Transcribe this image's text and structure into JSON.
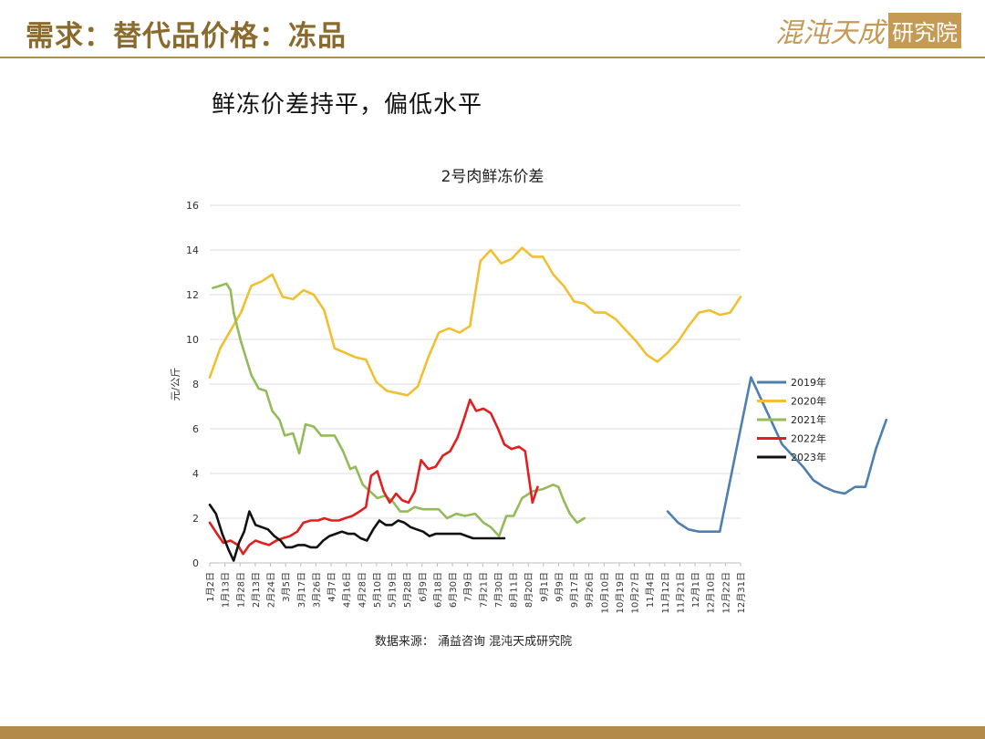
{
  "header": {
    "title": "需求：替代品价格：冻品"
  },
  "logo": {
    "text_a": "混沌天成",
    "text_b": "研究院"
  },
  "subtitle": "鲜冻价差持平，偏低水平",
  "source": "数据来源：  涌益咨询 混沌天成研究院",
  "colors": {
    "accent": "#b38a4a"
  },
  "chart_data": {
    "type": "line",
    "title": "2号肉鲜冻价差",
    "xlabel": "",
    "ylabel": "元/公斤",
    "ylim": [
      0,
      16
    ],
    "yticks": [
      0,
      2,
      4,
      6,
      8,
      10,
      12,
      14,
      16
    ],
    "grid": true,
    "legend_position": "right",
    "x": [
      "1月2日",
      "1月13日",
      "1月28日",
      "2月13日",
      "2月24日",
      "3月5日",
      "3月17日",
      "3月26日",
      "4月7日",
      "4月16日",
      "4月28日",
      "5月10日",
      "5月19日",
      "5月28日",
      "6月9日",
      "6月18日",
      "6月30日",
      "7月9日",
      "7月21日",
      "7月30日",
      "8月11日",
      "8月20日",
      "9月1日",
      "9月9日",
      "9月17日",
      "9月26日",
      "10月10日",
      "10月19日",
      "10月27日",
      "11月4日",
      "11月12日",
      "11月21日",
      "12月1日",
      "12月10日",
      "12月22日",
      "12月31日"
    ],
    "series": [
      {
        "name": "2019年",
        "color": "#4e7fb0",
        "points": [
          [
            44,
            2.3
          ],
          [
            45,
            1.8
          ],
          [
            46,
            1.5
          ],
          [
            47,
            1.4
          ],
          [
            48,
            1.4
          ],
          [
            49,
            1.4
          ],
          [
            50,
            3.7
          ],
          [
            51,
            6.0
          ],
          [
            52,
            8.3
          ],
          [
            53,
            7.3
          ],
          [
            54,
            6.3
          ],
          [
            55,
            5.3
          ],
          [
            56,
            4.8
          ],
          [
            57,
            4.3
          ],
          [
            58,
            3.7
          ],
          [
            59,
            3.4
          ],
          [
            60,
            3.2
          ],
          [
            61,
            3.1
          ],
          [
            62,
            3.4
          ],
          [
            63,
            3.4
          ],
          [
            64,
            5.1
          ],
          [
            65,
            6.4
          ]
        ]
      },
      {
        "name": "2020年",
        "color": "#f0c030",
        "points": [
          [
            0,
            8.3
          ],
          [
            1,
            9.6
          ],
          [
            2,
            10.4
          ],
          [
            3,
            11.2
          ],
          [
            4,
            12.4
          ],
          [
            5,
            12.6
          ],
          [
            6,
            12.9
          ],
          [
            7,
            11.9
          ],
          [
            8,
            11.8
          ],
          [
            9,
            12.2
          ],
          [
            10,
            12.0
          ],
          [
            11,
            11.3
          ],
          [
            12,
            9.6
          ],
          [
            13,
            9.4
          ],
          [
            14,
            9.2
          ],
          [
            15,
            9.1
          ],
          [
            16,
            8.1
          ],
          [
            17,
            7.7
          ],
          [
            18,
            7.6
          ],
          [
            19,
            7.5
          ],
          [
            20,
            7.9
          ],
          [
            21,
            9.2
          ],
          [
            22,
            10.3
          ],
          [
            23,
            10.5
          ],
          [
            24,
            10.3
          ],
          [
            25,
            10.6
          ],
          [
            26,
            13.5
          ],
          [
            27,
            14.0
          ],
          [
            28,
            13.4
          ],
          [
            29,
            13.6
          ],
          [
            30,
            14.1
          ],
          [
            31,
            13.7
          ],
          [
            32,
            13.7
          ],
          [
            33,
            12.9
          ],
          [
            34,
            12.4
          ],
          [
            35,
            11.7
          ],
          [
            36,
            11.6
          ],
          [
            37,
            11.2
          ],
          [
            38,
            11.2
          ],
          [
            39,
            10.9
          ],
          [
            40,
            10.4
          ],
          [
            41,
            9.9
          ],
          [
            42,
            9.3
          ],
          [
            43,
            9.0
          ],
          [
            44,
            9.4
          ],
          [
            45,
            9.9
          ],
          [
            46,
            10.6
          ],
          [
            47,
            11.2
          ],
          [
            48,
            11.3
          ],
          [
            49,
            11.1
          ],
          [
            50,
            11.2
          ],
          [
            51,
            11.9
          ]
        ]
      },
      {
        "name": "2021年",
        "color": "#93bb5a",
        "points": [
          [
            0.3,
            12.3
          ],
          [
            1,
            12.4
          ],
          [
            1.6,
            12.5
          ],
          [
            2,
            12.2
          ],
          [
            2.3,
            11.2
          ],
          [
            3,
            9.9
          ],
          [
            4,
            8.4
          ],
          [
            4.7,
            7.8
          ],
          [
            5.4,
            7.7
          ],
          [
            6,
            6.8
          ],
          [
            6.7,
            6.4
          ],
          [
            7.2,
            5.7
          ],
          [
            8,
            5.8
          ],
          [
            8.6,
            4.9
          ],
          [
            9.2,
            6.2
          ],
          [
            10,
            6.1
          ],
          [
            10.7,
            5.7
          ],
          [
            11.3,
            5.7
          ],
          [
            12,
            5.7
          ],
          [
            12.8,
            5.0
          ],
          [
            13.5,
            4.2
          ],
          [
            14,
            4.3
          ],
          [
            14.7,
            3.5
          ],
          [
            15.4,
            3.2
          ],
          [
            16.1,
            2.9
          ],
          [
            16.8,
            3.0
          ],
          [
            17.5,
            2.8
          ],
          [
            18.3,
            2.3
          ],
          [
            19,
            2.3
          ],
          [
            19.7,
            2.5
          ],
          [
            20.5,
            2.4
          ],
          [
            21.3,
            2.4
          ],
          [
            22,
            2.4
          ],
          [
            22.8,
            2.0
          ],
          [
            23.7,
            2.2
          ],
          [
            24.5,
            2.1
          ],
          [
            25.5,
            2.2
          ],
          [
            26.3,
            1.8
          ],
          [
            27,
            1.6
          ],
          [
            27.8,
            1.2
          ],
          [
            28.5,
            2.1
          ],
          [
            29.2,
            2.1
          ],
          [
            30,
            2.9
          ],
          [
            31,
            3.2
          ],
          [
            32,
            3.3
          ],
          [
            33,
            3.5
          ],
          [
            33.5,
            3.4
          ],
          [
            34,
            2.8
          ],
          [
            34.6,
            2.2
          ],
          [
            35.3,
            1.8
          ],
          [
            36,
            2.0
          ]
        ]
      },
      {
        "name": "2022年",
        "color": "#e02020",
        "points": [
          [
            0,
            1.8
          ],
          [
            0.7,
            1.3
          ],
          [
            1.3,
            0.9
          ],
          [
            2,
            1.0
          ],
          [
            2.7,
            0.8
          ],
          [
            3.2,
            0.4
          ],
          [
            3.8,
            0.8
          ],
          [
            4.4,
            1.0
          ],
          [
            5,
            0.9
          ],
          [
            5.7,
            0.8
          ],
          [
            6.4,
            1.0
          ],
          [
            7,
            1.1
          ],
          [
            7.7,
            1.2
          ],
          [
            8.4,
            1.4
          ],
          [
            9,
            1.8
          ],
          [
            9.7,
            1.9
          ],
          [
            10.4,
            1.9
          ],
          [
            11,
            2.0
          ],
          [
            11.7,
            1.9
          ],
          [
            12.4,
            1.9
          ],
          [
            13,
            2.0
          ],
          [
            13.7,
            2.1
          ],
          [
            14.4,
            2.3
          ],
          [
            15,
            2.5
          ],
          [
            15.5,
            3.9
          ],
          [
            16.1,
            4.1
          ],
          [
            16.7,
            3.2
          ],
          [
            17.3,
            2.7
          ],
          [
            17.9,
            3.1
          ],
          [
            18.5,
            2.8
          ],
          [
            19.1,
            2.7
          ],
          [
            19.7,
            3.2
          ],
          [
            20.3,
            4.6
          ],
          [
            21,
            4.2
          ],
          [
            21.7,
            4.3
          ],
          [
            22.4,
            4.8
          ],
          [
            23.1,
            5.0
          ],
          [
            23.8,
            5.6
          ],
          [
            24.4,
            6.4
          ],
          [
            25,
            7.3
          ],
          [
            25.6,
            6.8
          ],
          [
            26.3,
            6.9
          ],
          [
            27,
            6.7
          ],
          [
            27.7,
            6.0
          ],
          [
            28.3,
            5.3
          ],
          [
            29,
            5.1
          ],
          [
            29.7,
            5.2
          ],
          [
            30.3,
            5.0
          ],
          [
            31,
            2.7
          ],
          [
            31.5,
            3.4
          ]
        ]
      },
      {
        "name": "2023年",
        "color": "#111111",
        "points": [
          [
            0,
            2.6
          ],
          [
            0.6,
            2.2
          ],
          [
            1.2,
            1.3
          ],
          [
            1.8,
            0.6
          ],
          [
            2.3,
            0.1
          ],
          [
            2.8,
            0.9
          ],
          [
            3.3,
            1.4
          ],
          [
            3.8,
            2.3
          ],
          [
            4.4,
            1.7
          ],
          [
            5,
            1.6
          ],
          [
            5.6,
            1.5
          ],
          [
            6.2,
            1.2
          ],
          [
            6.8,
            1.0
          ],
          [
            7.3,
            0.7
          ],
          [
            7.9,
            0.7
          ],
          [
            8.5,
            0.8
          ],
          [
            9.1,
            0.8
          ],
          [
            9.7,
            0.7
          ],
          [
            10.3,
            0.7
          ],
          [
            10.9,
            1.0
          ],
          [
            11.5,
            1.2
          ],
          [
            12.1,
            1.3
          ],
          [
            12.7,
            1.4
          ],
          [
            13.3,
            1.3
          ],
          [
            13.9,
            1.3
          ],
          [
            14.5,
            1.1
          ],
          [
            15.1,
            1.0
          ],
          [
            15.7,
            1.5
          ],
          [
            16.3,
            1.9
          ],
          [
            16.9,
            1.7
          ],
          [
            17.5,
            1.7
          ],
          [
            18.1,
            1.9
          ],
          [
            18.7,
            1.8
          ],
          [
            19.3,
            1.6
          ],
          [
            19.9,
            1.5
          ],
          [
            20.5,
            1.4
          ],
          [
            21.1,
            1.2
          ],
          [
            21.7,
            1.3
          ],
          [
            22.3,
            1.3
          ],
          [
            22.9,
            1.3
          ],
          [
            23.5,
            1.3
          ],
          [
            24.1,
            1.3
          ],
          [
            24.7,
            1.2
          ],
          [
            25.3,
            1.1
          ],
          [
            25.9,
            1.1
          ],
          [
            26.5,
            1.1
          ],
          [
            27.1,
            1.1
          ],
          [
            27.7,
            1.1
          ],
          [
            28.3,
            1.1
          ]
        ]
      }
    ]
  }
}
